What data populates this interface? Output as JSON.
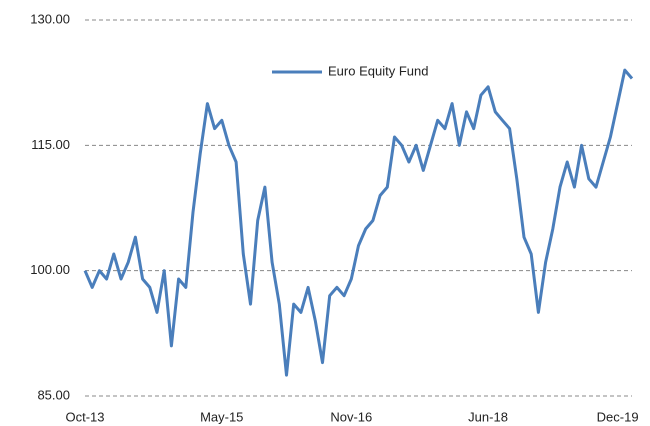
{
  "chart_data": {
    "type": "line",
    "categories": [
      "Oct-13",
      null,
      null,
      null,
      null,
      null,
      null,
      null,
      null,
      null,
      null,
      null,
      null,
      null,
      null,
      null,
      null,
      null,
      null,
      "May-15",
      null,
      null,
      null,
      null,
      null,
      null,
      null,
      null,
      null,
      null,
      null,
      null,
      null,
      null,
      null,
      null,
      null,
      "Nov-16",
      null,
      null,
      null,
      null,
      null,
      null,
      null,
      null,
      null,
      null,
      null,
      null,
      null,
      null,
      null,
      null,
      null,
      null,
      "Jun-18",
      null,
      null,
      null,
      null,
      null,
      null,
      null,
      null,
      null,
      null,
      null,
      null,
      null,
      null,
      null,
      null,
      null,
      "Dec-19",
      null,
      null
    ],
    "series": [
      {
        "name": "Euro Equity Fund",
        "color": "#4a7ebb",
        "values": [
          100,
          98,
          100,
          99,
          102,
          99,
          101,
          104,
          99,
          98,
          95,
          100,
          91,
          99,
          98,
          107,
          114,
          120,
          117,
          118,
          115,
          113,
          102,
          96,
          106,
          110,
          101,
          96,
          87.5,
          96,
          95,
          98,
          94,
          89,
          97,
          98,
          97,
          99,
          103,
          105,
          106,
          109,
          110,
          116,
          115,
          113,
          115,
          112,
          115,
          118,
          117,
          120,
          115,
          119,
          117,
          121,
          122,
          119,
          118,
          117,
          111,
          104,
          102,
          95,
          101,
          105,
          110,
          113,
          110,
          115,
          111,
          110,
          113,
          116,
          120,
          124,
          123
        ]
      }
    ],
    "ylim": [
      85,
      130
    ],
    "yticks": [
      {
        "value": 85,
        "label": "85.00"
      },
      {
        "value": 100,
        "label": "100.00"
      },
      {
        "value": 115,
        "label": "115.00"
      },
      {
        "value": 130,
        "label": "130.00"
      }
    ],
    "grid": true,
    "legend": "top-center"
  }
}
